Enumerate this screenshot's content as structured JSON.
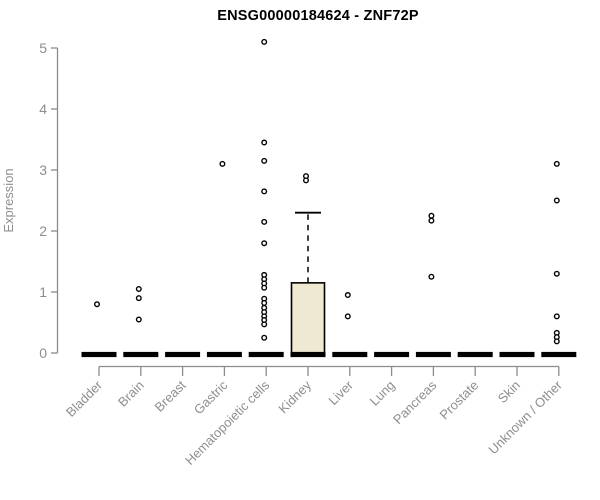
{
  "chart_data": {
    "type": "boxplot",
    "title": "ENSG00000184624 - ZNF72P",
    "ylabel": "Expression",
    "xlabel": "",
    "ylim": [
      0,
      5.3
    ],
    "yticks": [
      0,
      1,
      2,
      3,
      4,
      5
    ],
    "grid": false,
    "legend": "none",
    "categories": [
      "Bladder",
      "Brain",
      "Breast",
      "Gastric",
      "Hematopoietic cells",
      "Kidney",
      "Liver",
      "Lung",
      "Pancreas",
      "Prostate",
      "Skin",
      "Unknown / Other"
    ],
    "series": [
      {
        "name": "Bladder",
        "median": 0,
        "box": null,
        "outliers": [
          0.8
        ]
      },
      {
        "name": "Brain",
        "median": 0,
        "box": null,
        "outliers": [
          1.05,
          0.9,
          0.55
        ]
      },
      {
        "name": "Breast",
        "median": 0,
        "box": null,
        "outliers": []
      },
      {
        "name": "Gastric",
        "median": 0,
        "box": null,
        "outliers": [
          3.1
        ]
      },
      {
        "name": "Hematopoietic cells",
        "median": 0,
        "box": null,
        "outliers": [
          5.1,
          3.45,
          3.15,
          2.65,
          2.15,
          1.8,
          1.28,
          1.21,
          1.14,
          1.07,
          0.89,
          0.82,
          0.74,
          0.67,
          0.6,
          0.54,
          0.47,
          0.25
        ]
      },
      {
        "name": "Kidney",
        "median": 0,
        "box": {
          "q1": 0,
          "q3": 1.15,
          "whisker_high": 2.3
        },
        "outliers": [
          2.9,
          2.83
        ]
      },
      {
        "name": "Liver",
        "median": 0,
        "box": null,
        "outliers": [
          0.95,
          0.6
        ]
      },
      {
        "name": "Lung",
        "median": 0,
        "box": null,
        "outliers": []
      },
      {
        "name": "Pancreas",
        "median": 0,
        "box": null,
        "outliers": [
          2.25,
          2.17,
          1.25
        ]
      },
      {
        "name": "Prostate",
        "median": 0,
        "box": null,
        "outliers": []
      },
      {
        "name": "Skin",
        "median": 0,
        "box": null,
        "outliers": []
      },
      {
        "name": "Unknown / Other",
        "median": 0,
        "box": null,
        "outliers": [
          3.1,
          2.5,
          1.3,
          0.6,
          0.33,
          0.26,
          0.19
        ]
      }
    ],
    "colors": {
      "background": "#ffffff",
      "title": "#000000",
      "axis": "#8c8c8c",
      "tick_label": "#8e8e8e",
      "median_bar": "#000000",
      "box_fill": "#f0e9d2",
      "box_stroke": "#000000",
      "outlier_stroke": "#000000",
      "outlier_fill": "#ffffff"
    }
  }
}
